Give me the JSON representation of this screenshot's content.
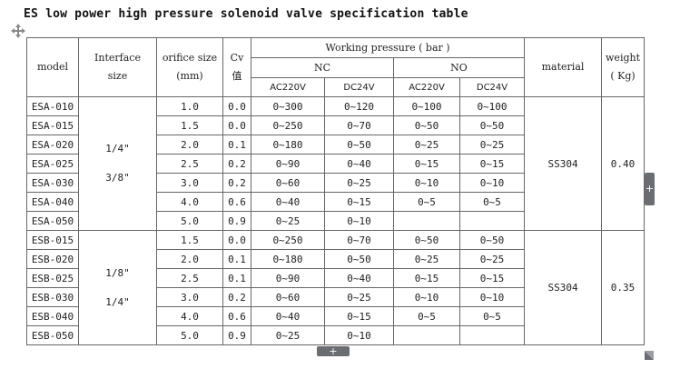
{
  "title": "ES low power high pressure solenoid valve specification table",
  "icons": {
    "move_handle": "move-arrows-icon",
    "side_expand": "plus-icon",
    "bottom_expand": "plus-icon",
    "resize": "resize-corner-icon"
  },
  "headers": {
    "model": "model",
    "interface_line1": "Interface",
    "interface_line2": "size",
    "orifice_line1": "orifice size",
    "orifice_line2": "(mm)",
    "cv_line1": "Cv",
    "cv_line2": "值",
    "working_pressure": "Working pressure  ( bar )",
    "nc": "NC",
    "no": "NO",
    "ac220v": "AC220V",
    "dc24v": "DC24V",
    "material": "material",
    "weight_line1": "weight",
    "weight_line2": "( Kg)"
  },
  "controls": {
    "side_button_label": "+",
    "bottom_button_label": "+"
  },
  "groups": [
    {
      "interface": [
        "1/4\"",
        "3/8\""
      ],
      "material": "SS304",
      "weight": "0.40",
      "rows": [
        {
          "model": "ESA-010",
          "orifice": "1.0",
          "cv": "0.0",
          "nc_ac": "0~300",
          "nc_dc": "0~120",
          "no_ac": "0~100",
          "no_dc": "0~100"
        },
        {
          "model": "ESA-015",
          "orifice": "1.5",
          "cv": "0.0",
          "nc_ac": "0~250",
          "nc_dc": "0~70",
          "no_ac": "0~50",
          "no_dc": "0~50"
        },
        {
          "model": "ESA-020",
          "orifice": "2.0",
          "cv": "0.1",
          "nc_ac": "0~180",
          "nc_dc": "0~50",
          "no_ac": "0~25",
          "no_dc": "0~25"
        },
        {
          "model": "ESA-025",
          "orifice": "2.5",
          "cv": "0.2",
          "nc_ac": "0~90",
          "nc_dc": "0~40",
          "no_ac": "0~15",
          "no_dc": "0~15"
        },
        {
          "model": "ESA-030",
          "orifice": "3.0",
          "cv": "0.2",
          "nc_ac": "0~60",
          "nc_dc": "0~25",
          "no_ac": "0~10",
          "no_dc": "0~10"
        },
        {
          "model": "ESA-040",
          "orifice": "4.0",
          "cv": "0.6",
          "nc_ac": "0~40",
          "nc_dc": "0~15",
          "no_ac": "0~5",
          "no_dc": "0~5"
        },
        {
          "model": "ESA-050",
          "orifice": "5.0",
          "cv": "0.9",
          "nc_ac": "0~25",
          "nc_dc": "0~10",
          "no_ac": "",
          "no_dc": ""
        }
      ]
    },
    {
      "interface": [
        "1/8\"",
        "1/4\""
      ],
      "material": "SS304",
      "weight": "0.35",
      "rows": [
        {
          "model": "ESB-015",
          "orifice": "1.5",
          "cv": "0.0",
          "nc_ac": "0~250",
          "nc_dc": "0~70",
          "no_ac": "0~50",
          "no_dc": "0~50"
        },
        {
          "model": "ESB-020",
          "orifice": "2.0",
          "cv": "0.1",
          "nc_ac": "0~180",
          "nc_dc": "0~50",
          "no_ac": "0~25",
          "no_dc": "0~25"
        },
        {
          "model": "ESB-025",
          "orifice": "2.5",
          "cv": "0.1",
          "nc_ac": "0~90",
          "nc_dc": "0~40",
          "no_ac": "0~15",
          "no_dc": "0~15"
        },
        {
          "model": "ESB-030",
          "orifice": "3.0",
          "cv": "0.2",
          "nc_ac": "0~60",
          "nc_dc": "0~25",
          "no_ac": "0~10",
          "no_dc": "0~10"
        },
        {
          "model": "ESB-040",
          "orifice": "4.0",
          "cv": "0.6",
          "nc_ac": "0~40",
          "nc_dc": "0~15",
          "no_ac": "0~5",
          "no_dc": "0~5"
        },
        {
          "model": "ESB-050",
          "orifice": "5.0",
          "cv": "0.9",
          "nc_ac": "0~25",
          "nc_dc": "0~10",
          "no_ac": "",
          "no_dc": ""
        }
      ]
    }
  ]
}
